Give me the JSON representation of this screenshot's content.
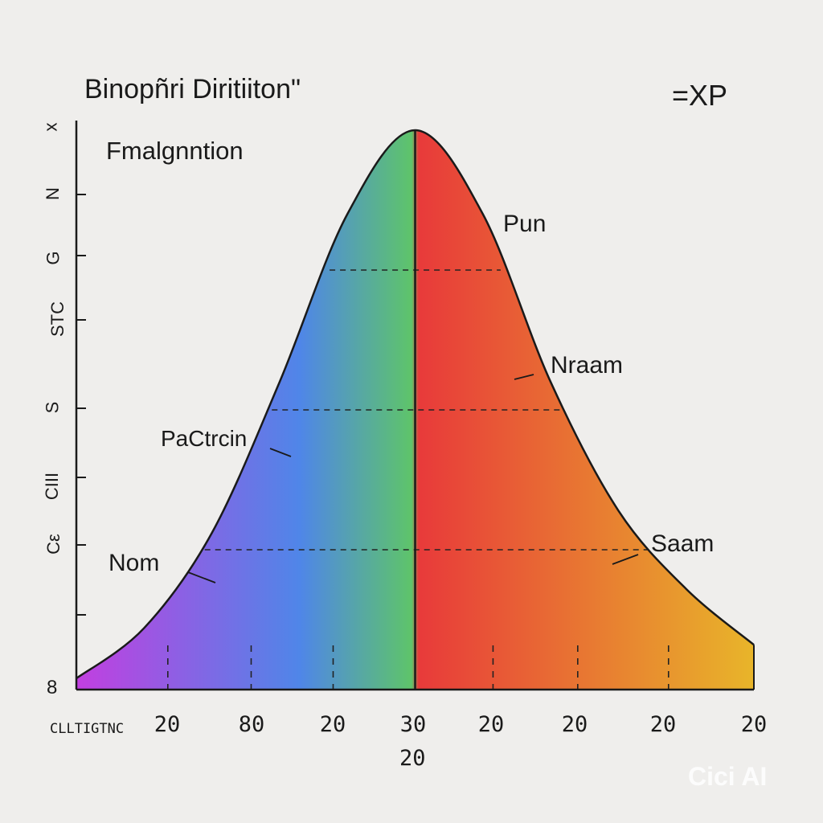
{
  "chart_data": {
    "type": "area",
    "title": "Binopñri Diritiiton\"",
    "subtitle": "Fmalgnntion",
    "corner_label": "=XP",
    "xlabel": "CLLTIGTNC",
    "x_tick_labels": [
      "20",
      "80",
      "20",
      "30",
      "20",
      "20",
      "20",
      "20"
    ],
    "x_extra_label": "20",
    "y_tick_labels": [
      "x",
      "N",
      "G",
      "STC",
      "S",
      "CIII",
      "Cε",
      "",
      "8"
    ],
    "annotations": [
      "Pun",
      "Nraam",
      "PaCtrcin",
      "Saam",
      "Nom"
    ],
    "x": [
      0,
      1,
      2,
      3,
      4,
      5,
      6,
      7,
      8,
      9,
      10
    ],
    "values": [
      0.02,
      0.11,
      0.28,
      0.55,
      0.85,
      1.0,
      0.85,
      0.55,
      0.32,
      0.18,
      0.08
    ],
    "center_x": 5,
    "dashed_levels": [
      0.25,
      0.5,
      0.75
    ],
    "gradient_colors": [
      "#c23fe0",
      "#4f86e8",
      "#5ec46a",
      "#e83a3a",
      "#e8b52a"
    ],
    "grid": false,
    "legend": "none"
  },
  "watermark": "Cici AI"
}
